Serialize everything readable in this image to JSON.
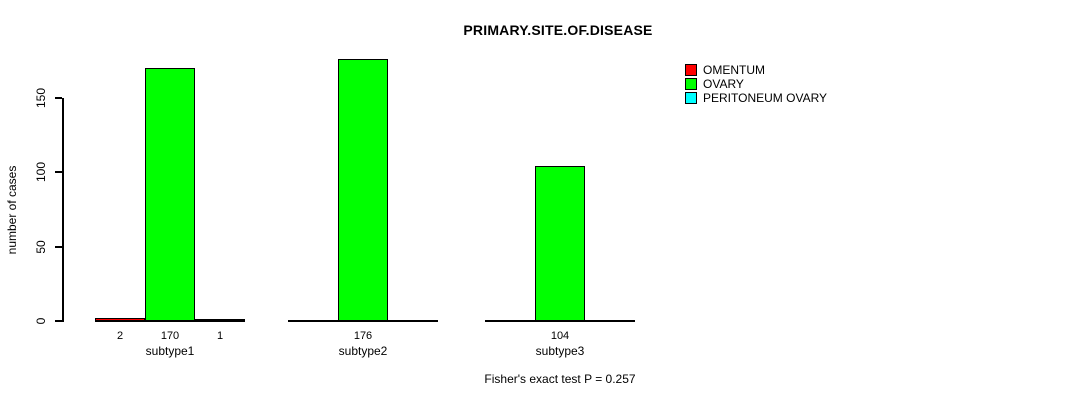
{
  "chart_data": {
    "type": "bar",
    "title": "PRIMARY.SITE.OF.DISEASE",
    "categories": [
      "subtype1",
      "subtype2",
      "subtype3"
    ],
    "series": [
      {
        "name": "OMENTUM",
        "color": "#ff0000",
        "values": [
          2,
          0,
          0
        ]
      },
      {
        "name": "OVARY",
        "color": "#00ff00",
        "values": [
          170,
          176,
          104
        ]
      },
      {
        "name": "PERITONEUM OVARY",
        "color": "#00ffff",
        "values": [
          1,
          0,
          0
        ]
      }
    ],
    "xlabel": "",
    "ylabel": "number of cases",
    "yticks": [
      0,
      50,
      100,
      150
    ],
    "ylim": [
      0,
      180
    ],
    "grid": false,
    "legend_position": "right",
    "value_labels": "nonzero bar counts shown below baseline",
    "annotation": "Fisher's exact test P = 0.257"
  },
  "colors": {
    "axis": "#000000",
    "text": "#000000",
    "background": "#ffffff"
  }
}
